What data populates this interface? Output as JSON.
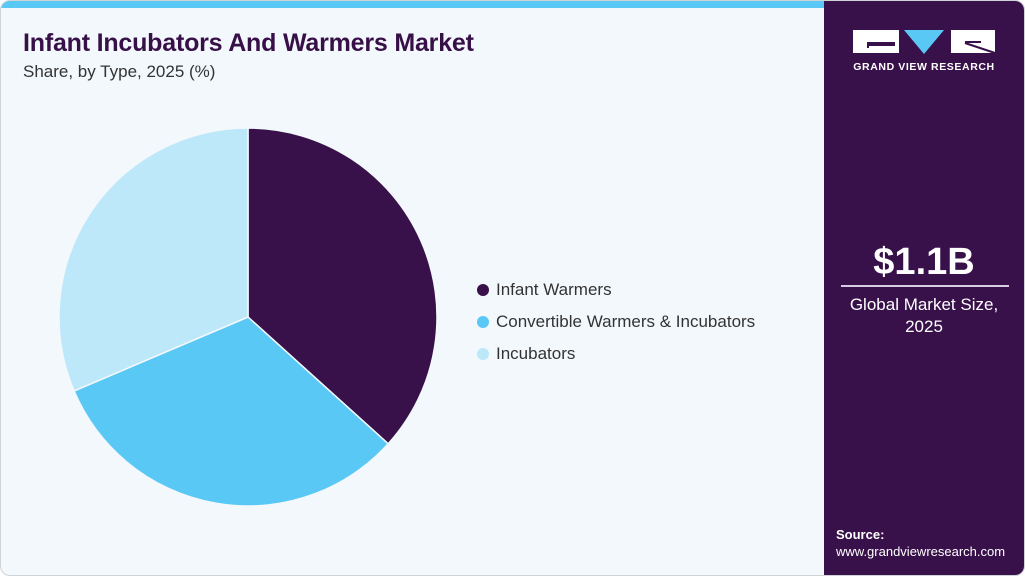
{
  "header": {
    "title": "Infant Incubators And Warmers Market",
    "subtitle": "Share, by Type, 2025 (%)"
  },
  "colors": {
    "accent_bar": "#5ac8f5",
    "sidebar_bg": "#38114a",
    "panel_bg": "#f3f8fc",
    "title": "#371047"
  },
  "legend": {
    "items": [
      {
        "label": "Infant Warmers",
        "color": "#38114a"
      },
      {
        "label": "Convertible Warmers & Incubators",
        "color": "#5ac8f5"
      },
      {
        "label": "Incubators",
        "color": "#bde8f9"
      }
    ]
  },
  "sidebar": {
    "brand": "GRAND VIEW RESEARCH",
    "market_value": "$1.1B",
    "market_label_line1": "Global Market Size,",
    "market_label_line2": "2025",
    "source_label": "Source:",
    "source_url": "www.grandviewresearch.com"
  },
  "chart_data": {
    "type": "pie",
    "title": "Infant Incubators And Warmers Market",
    "subtitle": "Share, by Type, 2025 (%)",
    "categories": [
      "Infant Warmers",
      "Convertible Warmers & Incubators",
      "Incubators"
    ],
    "values": [
      36.7,
      31.9,
      31.4
    ],
    "colors": [
      "#38114a",
      "#5ac8f5",
      "#bde8f9"
    ],
    "start_angle_deg": 0,
    "direction": "clockwise",
    "legend_position": "right",
    "data_labels": false
  }
}
